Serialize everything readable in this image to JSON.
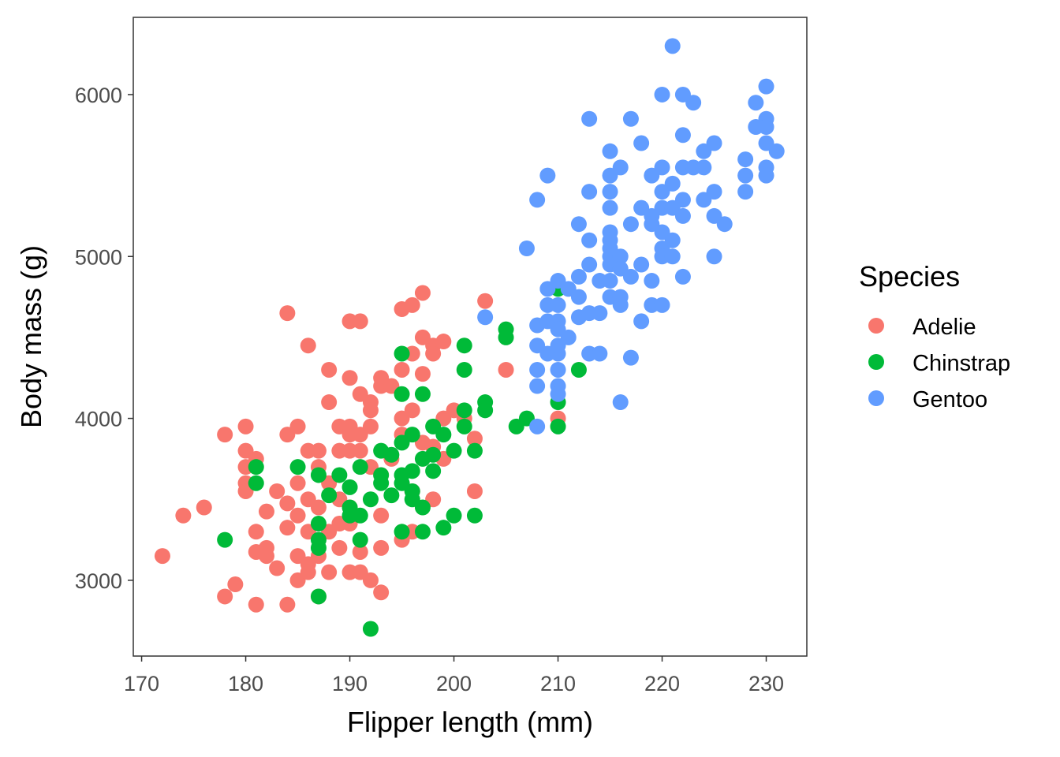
{
  "chart_data": {
    "type": "scatter",
    "title": "",
    "xlabel": "Flipper length (mm)",
    "ylabel": "Body mass (g)",
    "xlim": [
      169.2,
      233.9
    ],
    "ylim": [
      2532,
      6477
    ],
    "xticks": [
      170,
      180,
      190,
      200,
      210,
      220,
      230
    ],
    "yticks": [
      3000,
      4000,
      5000,
      6000
    ],
    "grid": false,
    "legend": {
      "title": "Species",
      "placement": "right"
    },
    "series": [
      {
        "name": "Adelie",
        "color": "#F8766D",
        "points": [
          [
            172,
            3150
          ],
          [
            174,
            3400
          ],
          [
            176,
            3450
          ],
          [
            178,
            2900
          ],
          [
            178,
            3900
          ],
          [
            179,
            2975
          ],
          [
            180,
            3950
          ],
          [
            180,
            3800
          ],
          [
            180,
            3700
          ],
          [
            180,
            3600
          ],
          [
            180,
            3550
          ],
          [
            181,
            2850
          ],
          [
            181,
            3300
          ],
          [
            181,
            3175
          ],
          [
            181,
            3750
          ],
          [
            182,
            3200
          ],
          [
            182,
            3150
          ],
          [
            182,
            3425
          ],
          [
            183,
            3075
          ],
          [
            183,
            3550
          ],
          [
            184,
            4650
          ],
          [
            184,
            2850
          ],
          [
            184,
            3900
          ],
          [
            184,
            3325
          ],
          [
            184,
            3475
          ],
          [
            185,
            3950
          ],
          [
            185,
            3000
          ],
          [
            185,
            3150
          ],
          [
            185,
            3400
          ],
          [
            185,
            3600
          ],
          [
            186,
            4450
          ],
          [
            186,
            3800
          ],
          [
            186,
            3500
          ],
          [
            186,
            3100
          ],
          [
            186,
            3050
          ],
          [
            186,
            3300
          ],
          [
            187,
            3800
          ],
          [
            187,
            3700
          ],
          [
            187,
            3450
          ],
          [
            187,
            3150
          ],
          [
            187,
            2900
          ],
          [
            188,
            4300
          ],
          [
            188,
            4100
          ],
          [
            188,
            3050
          ],
          [
            188,
            3300
          ],
          [
            188,
            3600
          ],
          [
            189,
            3950
          ],
          [
            189,
            3800
          ],
          [
            189,
            3500
          ],
          [
            189,
            3200
          ],
          [
            189,
            3350
          ],
          [
            190,
            4600
          ],
          [
            190,
            4250
          ],
          [
            190,
            3950
          ],
          [
            190,
            3900
          ],
          [
            190,
            3800
          ],
          [
            190,
            3450
          ],
          [
            190,
            3050
          ],
          [
            190,
            3350
          ],
          [
            191,
            4600
          ],
          [
            191,
            4150
          ],
          [
            191,
            3800
          ],
          [
            191,
            3050
          ],
          [
            191,
            3175
          ],
          [
            191,
            3900
          ],
          [
            192,
            4100
          ],
          [
            192,
            4050
          ],
          [
            192,
            3950
          ],
          [
            192,
            3000
          ],
          [
            192,
            3700
          ],
          [
            193,
            4250
          ],
          [
            193,
            4200
          ],
          [
            193,
            3400
          ],
          [
            193,
            3200
          ],
          [
            193,
            2925
          ],
          [
            193,
            3650
          ],
          [
            194,
            4200
          ],
          [
            194,
            3750
          ],
          [
            195,
            4675
          ],
          [
            195,
            4300
          ],
          [
            195,
            4000
          ],
          [
            195,
            3250
          ],
          [
            195,
            3900
          ],
          [
            196,
            4700
          ],
          [
            196,
            4400
          ],
          [
            196,
            4050
          ],
          [
            196,
            3550
          ],
          [
            196,
            3300
          ],
          [
            197,
            4775
          ],
          [
            197,
            4500
          ],
          [
            197,
            4275
          ],
          [
            197,
            3850
          ],
          [
            198,
            4450
          ],
          [
            198,
            4400
          ],
          [
            198,
            3500
          ],
          [
            198,
            3825
          ],
          [
            199,
            4475
          ],
          [
            199,
            3750
          ],
          [
            199,
            4000
          ],
          [
            200,
            4050
          ],
          [
            201,
            4000
          ],
          [
            202,
            3875
          ],
          [
            202,
            3550
          ],
          [
            203,
            4725
          ],
          [
            205,
            4300
          ],
          [
            210,
            4000
          ]
        ]
      },
      {
        "name": "Chinstrap",
        "color": "#00BA38",
        "points": [
          [
            178,
            3250
          ],
          [
            181,
            3700
          ],
          [
            181,
            3600
          ],
          [
            185,
            3700
          ],
          [
            187,
            3650
          ],
          [
            187,
            3350
          ],
          [
            187,
            3250
          ],
          [
            187,
            3200
          ],
          [
            187,
            2900
          ],
          [
            188,
            3525
          ],
          [
            189,
            3650
          ],
          [
            190,
            3575
          ],
          [
            190,
            3450
          ],
          [
            190,
            3400
          ],
          [
            191,
            3700
          ],
          [
            191,
            3400
          ],
          [
            191,
            3250
          ],
          [
            192,
            3500
          ],
          [
            192,
            2700
          ],
          [
            193,
            3800
          ],
          [
            193,
            3650
          ],
          [
            193,
            3600
          ],
          [
            194,
            3775
          ],
          [
            194,
            3525
          ],
          [
            195,
            4400
          ],
          [
            195,
            4150
          ],
          [
            195,
            3850
          ],
          [
            195,
            3650
          ],
          [
            195,
            3600
          ],
          [
            195,
            3300
          ],
          [
            196,
            3900
          ],
          [
            196,
            3675
          ],
          [
            196,
            3550
          ],
          [
            196,
            3500
          ],
          [
            197,
            4150
          ],
          [
            197,
            3750
          ],
          [
            197,
            3450
          ],
          [
            197,
            3300
          ],
          [
            198,
            3950
          ],
          [
            198,
            3775
          ],
          [
            198,
            3675
          ],
          [
            199,
            3900
          ],
          [
            199,
            3325
          ],
          [
            200,
            3800
          ],
          [
            200,
            3400
          ],
          [
            201,
            4450
          ],
          [
            201,
            4300
          ],
          [
            201,
            4050
          ],
          [
            201,
            3950
          ],
          [
            202,
            3800
          ],
          [
            202,
            3400
          ],
          [
            203,
            4100
          ],
          [
            203,
            4050
          ],
          [
            205,
            4550
          ],
          [
            205,
            4500
          ],
          [
            206,
            3950
          ],
          [
            207,
            4000
          ],
          [
            210,
            4800
          ],
          [
            210,
            4100
          ],
          [
            210,
            3950
          ],
          [
            212,
            4300
          ]
        ]
      },
      {
        "name": "Gentoo",
        "color": "#619CFF",
        "points": [
          [
            203,
            4625
          ],
          [
            207,
            5050
          ],
          [
            208,
            5350
          ],
          [
            208,
            4575
          ],
          [
            208,
            4450
          ],
          [
            208,
            4300
          ],
          [
            208,
            4200
          ],
          [
            208,
            3950
          ],
          [
            209,
            5500
          ],
          [
            209,
            4800
          ],
          [
            209,
            4700
          ],
          [
            209,
            4600
          ],
          [
            209,
            4400
          ],
          [
            210,
            4850
          ],
          [
            210,
            4700
          ],
          [
            210,
            4600
          ],
          [
            210,
            4550
          ],
          [
            210,
            4400
          ],
          [
            210,
            4300
          ],
          [
            210,
            4200
          ],
          [
            210,
            4150
          ],
          [
            210,
            4450
          ],
          [
            211,
            4500
          ],
          [
            211,
            4800
          ],
          [
            212,
            5200
          ],
          [
            212,
            4875
          ],
          [
            212,
            4750
          ],
          [
            212,
            4625
          ],
          [
            213,
            5850
          ],
          [
            213,
            5400
          ],
          [
            213,
            5100
          ],
          [
            213,
            4950
          ],
          [
            213,
            4400
          ],
          [
            213,
            4650
          ],
          [
            214,
            4850
          ],
          [
            214,
            4650
          ],
          [
            214,
            4400
          ],
          [
            215,
            5650
          ],
          [
            215,
            5500
          ],
          [
            215,
            5400
          ],
          [
            215,
            5300
          ],
          [
            215,
            5150
          ],
          [
            215,
            5100
          ],
          [
            215,
            5050
          ],
          [
            215,
            5000
          ],
          [
            215,
            4950
          ],
          [
            215,
            4850
          ],
          [
            215,
            4750
          ],
          [
            216,
            5550
          ],
          [
            216,
            5000
          ],
          [
            216,
            4750
          ],
          [
            216,
            4700
          ],
          [
            216,
            4100
          ],
          [
            216,
            4925
          ],
          [
            217,
            5850
          ],
          [
            217,
            5200
          ],
          [
            217,
            4875
          ],
          [
            217,
            4375
          ],
          [
            218,
            5700
          ],
          [
            218,
            5300
          ],
          [
            218,
            4950
          ],
          [
            218,
            4600
          ],
          [
            219,
            5500
          ],
          [
            219,
            5250
          ],
          [
            219,
            5200
          ],
          [
            219,
            4850
          ],
          [
            219,
            4700
          ],
          [
            220,
            6000
          ],
          [
            220,
            5550
          ],
          [
            220,
            5400
          ],
          [
            220,
            5300
          ],
          [
            220,
            5150
          ],
          [
            220,
            5050
          ],
          [
            220,
            5000
          ],
          [
            220,
            4700
          ],
          [
            221,
            6300
          ],
          [
            221,
            5450
          ],
          [
            221,
            5300
          ],
          [
            221,
            5100
          ],
          [
            221,
            5000
          ],
          [
            222,
            6000
          ],
          [
            222,
            5750
          ],
          [
            222,
            5550
          ],
          [
            222,
            5350
          ],
          [
            222,
            5250
          ],
          [
            222,
            4875
          ],
          [
            223,
            5950
          ],
          [
            223,
            5550
          ],
          [
            224,
            5650
          ],
          [
            224,
            5550
          ],
          [
            224,
            5350
          ],
          [
            225,
            5700
          ],
          [
            225,
            5400
          ],
          [
            225,
            5250
          ],
          [
            225,
            5000
          ],
          [
            226,
            5200
          ],
          [
            228,
            5600
          ],
          [
            228,
            5500
          ],
          [
            228,
            5400
          ],
          [
            229,
            5950
          ],
          [
            229,
            5800
          ],
          [
            230,
            6050
          ],
          [
            230,
            5850
          ],
          [
            230,
            5800
          ],
          [
            230,
            5700
          ],
          [
            230,
            5550
          ],
          [
            230,
            5500
          ],
          [
            231,
            5650
          ]
        ]
      }
    ]
  }
}
